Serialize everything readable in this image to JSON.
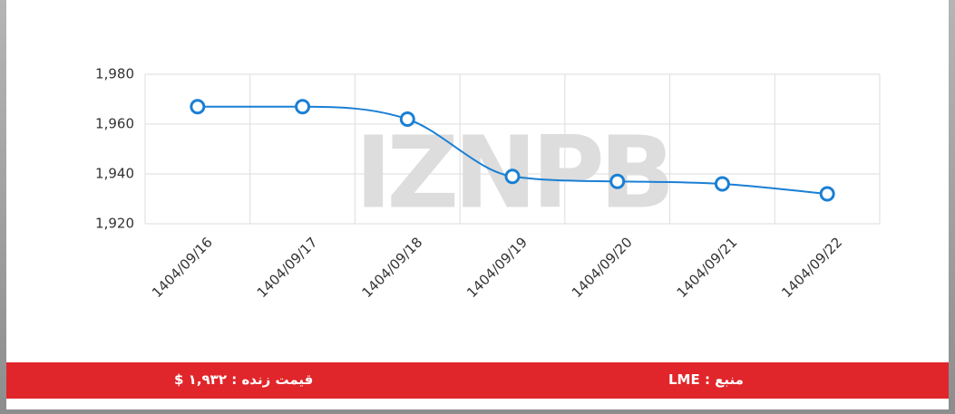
{
  "chart_data": {
    "type": "line",
    "watermark": "IZNPB",
    "categories": [
      "1404/09/16",
      "1404/09/17",
      "1404/09/18",
      "1404/09/19",
      "1404/09/20",
      "1404/09/21",
      "1404/09/22"
    ],
    "series": [
      {
        "name": null,
        "color": "#1a7fd4",
        "values": [
          1967,
          1967,
          1962,
          1939,
          1937,
          1936,
          1932
        ]
      }
    ],
    "ylim": [
      1920,
      1980
    ],
    "yticks": [
      {
        "value": 1920,
        "label": "1,920"
      },
      {
        "value": 1940,
        "label": "1,940"
      },
      {
        "value": 1960,
        "label": "1,960"
      },
      {
        "value": 1980,
        "label": "1,980"
      }
    ],
    "grid": true
  },
  "footer": {
    "live_price": "قیمت زنده : ۱,۹۳۲ $",
    "source": "منبع : LME"
  }
}
